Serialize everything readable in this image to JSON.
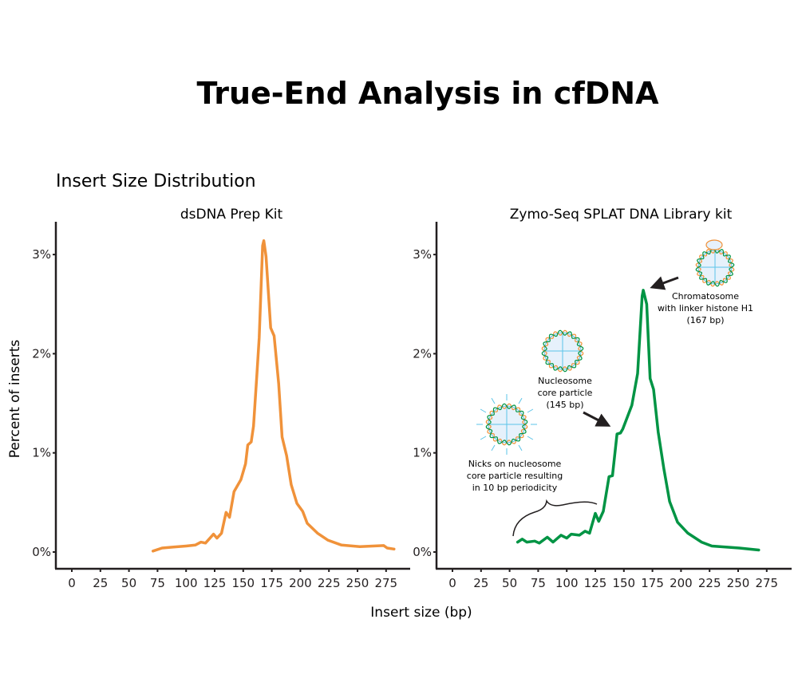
{
  "title": "True-End Analysis in cfDNA",
  "subtitle": "Insert Size Distribution",
  "xlabel": "Insert size (bp)",
  "ylabel": "Percent of inserts",
  "chart_data": [
    {
      "type": "line",
      "title": "dsDNA Prep Kit",
      "color": "#f0923a",
      "xlim": [
        0,
        280
      ],
      "ylim": [
        0,
        3.2
      ],
      "xticks": [
        0,
        25,
        50,
        75,
        100,
        125,
        150,
        175,
        200,
        225,
        250,
        275
      ],
      "yticks": [
        0,
        1,
        2,
        3
      ],
      "ytick_labels": [
        "0%",
        "1%",
        "2%",
        "3%"
      ],
      "grid": false,
      "x": [
        71,
        79,
        89,
        100,
        108,
        113,
        117,
        124,
        127,
        131,
        135,
        138,
        142,
        148,
        152,
        154,
        157,
        159,
        162,
        164,
        167,
        168,
        170,
        174,
        177,
        181,
        184,
        188,
        192,
        197,
        202,
        206,
        215,
        224,
        236,
        252,
        273,
        276,
        282
      ],
      "y": [
        0.01,
        0.04,
        0.05,
        0.06,
        0.07,
        0.1,
        0.09,
        0.18,
        0.14,
        0.19,
        0.4,
        0.35,
        0.61,
        0.73,
        0.89,
        1.08,
        1.11,
        1.27,
        1.8,
        2.16,
        3.09,
        3.14,
        2.98,
        2.26,
        2.18,
        1.7,
        1.16,
        0.97,
        0.68,
        0.49,
        0.41,
        0.29,
        0.19,
        0.12,
        0.07,
        0.055,
        0.065,
        0.04,
        0.03
      ]
    },
    {
      "type": "line",
      "title": "Zymo-Seq SPLAT DNA Library kit",
      "color": "#009444",
      "xlim": [
        0,
        280
      ],
      "ylim": [
        0,
        3.2
      ],
      "xticks": [
        0,
        25,
        50,
        75,
        100,
        125,
        150,
        175,
        200,
        225,
        250,
        275
      ],
      "yticks": [
        0,
        1,
        2,
        3
      ],
      "ytick_labels": [
        "0%",
        "1%",
        "2%",
        "3%"
      ],
      "grid": false,
      "x": [
        57,
        61,
        65,
        72,
        76,
        83,
        88,
        95,
        100,
        104,
        111,
        116,
        120,
        125,
        128,
        132,
        137,
        140,
        144,
        147,
        149,
        157,
        162,
        166,
        167,
        170,
        173,
        176,
        180,
        185,
        190,
        197,
        206,
        218,
        227,
        251,
        268
      ],
      "y": [
        0.1,
        0.13,
        0.1,
        0.11,
        0.09,
        0.15,
        0.1,
        0.17,
        0.14,
        0.18,
        0.17,
        0.21,
        0.19,
        0.39,
        0.31,
        0.41,
        0.76,
        0.77,
        1.19,
        1.2,
        1.24,
        1.48,
        1.8,
        2.58,
        2.64,
        2.5,
        1.75,
        1.64,
        1.21,
        0.84,
        0.51,
        0.3,
        0.19,
        0.1,
        0.06,
        0.04,
        0.02
      ],
      "annotations": [
        {
          "lines": [
            "Chromatosome",
            "with linker histone H1",
            "(167 bp)"
          ],
          "icon": "chromatosome-icon"
        },
        {
          "lines": [
            "Nucleosome",
            "core particle",
            "(145 bp)"
          ],
          "icon": "nucleosome-icon"
        },
        {
          "lines": [
            "Nicks on nucleosome",
            "core particle resulting",
            "in 10 bp periodicity"
          ],
          "icon": "nicked-nucleosome-icon"
        }
      ]
    }
  ]
}
